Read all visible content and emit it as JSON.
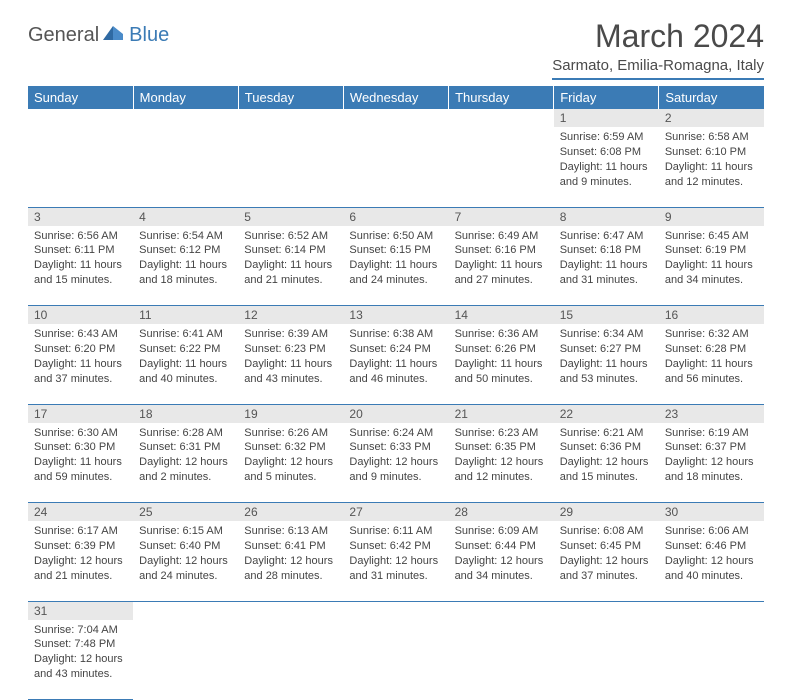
{
  "logo": {
    "general": "General",
    "blue": "Blue"
  },
  "title": "March 2024",
  "location": "Sarmato, Emilia-Romagna, Italy",
  "colors": {
    "header_bg": "#3b7bb5",
    "header_text": "#ffffff",
    "daynum_bg": "#e8e8e8",
    "text": "#444444",
    "border": "#3b7bb5",
    "page_bg": "#ffffff"
  },
  "typography": {
    "title_fontsize": 32,
    "location_fontsize": 15,
    "weekday_fontsize": 13,
    "cell_fontsize": 11
  },
  "weekdays": [
    "Sunday",
    "Monday",
    "Tuesday",
    "Wednesday",
    "Thursday",
    "Friday",
    "Saturday"
  ],
  "weeks": [
    [
      null,
      null,
      null,
      null,
      null,
      {
        "n": "1",
        "sr": "Sunrise: 6:59 AM",
        "ss": "Sunset: 6:08 PM",
        "dl": "Daylight: 11 hours and 9 minutes."
      },
      {
        "n": "2",
        "sr": "Sunrise: 6:58 AM",
        "ss": "Sunset: 6:10 PM",
        "dl": "Daylight: 11 hours and 12 minutes."
      }
    ],
    [
      {
        "n": "3",
        "sr": "Sunrise: 6:56 AM",
        "ss": "Sunset: 6:11 PM",
        "dl": "Daylight: 11 hours and 15 minutes."
      },
      {
        "n": "4",
        "sr": "Sunrise: 6:54 AM",
        "ss": "Sunset: 6:12 PM",
        "dl": "Daylight: 11 hours and 18 minutes."
      },
      {
        "n": "5",
        "sr": "Sunrise: 6:52 AM",
        "ss": "Sunset: 6:14 PM",
        "dl": "Daylight: 11 hours and 21 minutes."
      },
      {
        "n": "6",
        "sr": "Sunrise: 6:50 AM",
        "ss": "Sunset: 6:15 PM",
        "dl": "Daylight: 11 hours and 24 minutes."
      },
      {
        "n": "7",
        "sr": "Sunrise: 6:49 AM",
        "ss": "Sunset: 6:16 PM",
        "dl": "Daylight: 11 hours and 27 minutes."
      },
      {
        "n": "8",
        "sr": "Sunrise: 6:47 AM",
        "ss": "Sunset: 6:18 PM",
        "dl": "Daylight: 11 hours and 31 minutes."
      },
      {
        "n": "9",
        "sr": "Sunrise: 6:45 AM",
        "ss": "Sunset: 6:19 PM",
        "dl": "Daylight: 11 hours and 34 minutes."
      }
    ],
    [
      {
        "n": "10",
        "sr": "Sunrise: 6:43 AM",
        "ss": "Sunset: 6:20 PM",
        "dl": "Daylight: 11 hours and 37 minutes."
      },
      {
        "n": "11",
        "sr": "Sunrise: 6:41 AM",
        "ss": "Sunset: 6:22 PM",
        "dl": "Daylight: 11 hours and 40 minutes."
      },
      {
        "n": "12",
        "sr": "Sunrise: 6:39 AM",
        "ss": "Sunset: 6:23 PM",
        "dl": "Daylight: 11 hours and 43 minutes."
      },
      {
        "n": "13",
        "sr": "Sunrise: 6:38 AM",
        "ss": "Sunset: 6:24 PM",
        "dl": "Daylight: 11 hours and 46 minutes."
      },
      {
        "n": "14",
        "sr": "Sunrise: 6:36 AM",
        "ss": "Sunset: 6:26 PM",
        "dl": "Daylight: 11 hours and 50 minutes."
      },
      {
        "n": "15",
        "sr": "Sunrise: 6:34 AM",
        "ss": "Sunset: 6:27 PM",
        "dl": "Daylight: 11 hours and 53 minutes."
      },
      {
        "n": "16",
        "sr": "Sunrise: 6:32 AM",
        "ss": "Sunset: 6:28 PM",
        "dl": "Daylight: 11 hours and 56 minutes."
      }
    ],
    [
      {
        "n": "17",
        "sr": "Sunrise: 6:30 AM",
        "ss": "Sunset: 6:30 PM",
        "dl": "Daylight: 11 hours and 59 minutes."
      },
      {
        "n": "18",
        "sr": "Sunrise: 6:28 AM",
        "ss": "Sunset: 6:31 PM",
        "dl": "Daylight: 12 hours and 2 minutes."
      },
      {
        "n": "19",
        "sr": "Sunrise: 6:26 AM",
        "ss": "Sunset: 6:32 PM",
        "dl": "Daylight: 12 hours and 5 minutes."
      },
      {
        "n": "20",
        "sr": "Sunrise: 6:24 AM",
        "ss": "Sunset: 6:33 PM",
        "dl": "Daylight: 12 hours and 9 minutes."
      },
      {
        "n": "21",
        "sr": "Sunrise: 6:23 AM",
        "ss": "Sunset: 6:35 PM",
        "dl": "Daylight: 12 hours and 12 minutes."
      },
      {
        "n": "22",
        "sr": "Sunrise: 6:21 AM",
        "ss": "Sunset: 6:36 PM",
        "dl": "Daylight: 12 hours and 15 minutes."
      },
      {
        "n": "23",
        "sr": "Sunrise: 6:19 AM",
        "ss": "Sunset: 6:37 PM",
        "dl": "Daylight: 12 hours and 18 minutes."
      }
    ],
    [
      {
        "n": "24",
        "sr": "Sunrise: 6:17 AM",
        "ss": "Sunset: 6:39 PM",
        "dl": "Daylight: 12 hours and 21 minutes."
      },
      {
        "n": "25",
        "sr": "Sunrise: 6:15 AM",
        "ss": "Sunset: 6:40 PM",
        "dl": "Daylight: 12 hours and 24 minutes."
      },
      {
        "n": "26",
        "sr": "Sunrise: 6:13 AM",
        "ss": "Sunset: 6:41 PM",
        "dl": "Daylight: 12 hours and 28 minutes."
      },
      {
        "n": "27",
        "sr": "Sunrise: 6:11 AM",
        "ss": "Sunset: 6:42 PM",
        "dl": "Daylight: 12 hours and 31 minutes."
      },
      {
        "n": "28",
        "sr": "Sunrise: 6:09 AM",
        "ss": "Sunset: 6:44 PM",
        "dl": "Daylight: 12 hours and 34 minutes."
      },
      {
        "n": "29",
        "sr": "Sunrise: 6:08 AM",
        "ss": "Sunset: 6:45 PM",
        "dl": "Daylight: 12 hours and 37 minutes."
      },
      {
        "n": "30",
        "sr": "Sunrise: 6:06 AM",
        "ss": "Sunset: 6:46 PM",
        "dl": "Daylight: 12 hours and 40 minutes."
      }
    ],
    [
      {
        "n": "31",
        "sr": "Sunrise: 7:04 AM",
        "ss": "Sunset: 7:48 PM",
        "dl": "Daylight: 12 hours and 43 minutes."
      },
      null,
      null,
      null,
      null,
      null,
      null
    ]
  ]
}
